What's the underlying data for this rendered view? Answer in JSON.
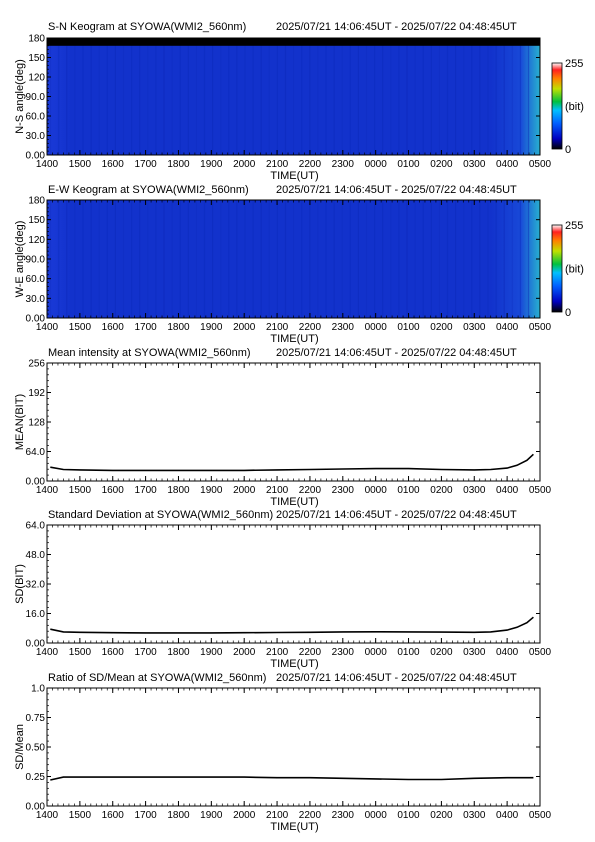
{
  "header_range": "2025/07/21 14:06:45UT - 2025/07/22 04:48:45UT",
  "time_ticks": [
    "1400",
    "1500",
    "1600",
    "1700",
    "1800",
    "1900",
    "2000",
    "2100",
    "2200",
    "2300",
    "0000",
    "0100",
    "0200",
    "0300",
    "0400",
    "0500"
  ],
  "xlabel": "TIME(UT)",
  "colorbar": {
    "max_label": "255",
    "min_label": "0",
    "unit_label": "(bit)"
  },
  "colors": {
    "keogram_base": "#1030d0",
    "keogram_edge": "#20a0d0",
    "night_band": "#000000",
    "line": "#000000"
  },
  "chart_data": [
    {
      "type": "heatmap",
      "title": "S-N Keogram at SYOWA(WMI2_560nm)",
      "ylabel": "N-S angle(deg)",
      "ylim": [
        0,
        180
      ],
      "yticks": [
        "180",
        "150",
        "120",
        "90.0",
        "60.0",
        "30.0",
        "0.00"
      ],
      "description_values": {
        "typical_intensity_bit": 40,
        "end_intensity_bit": 80,
        "top_band_angle_deg": [
          168,
          180
        ]
      }
    },
    {
      "type": "heatmap",
      "title": "E-W Keogram at SYOWA(WMI2_560nm)",
      "ylabel": "W-E angle(deg)",
      "ylim": [
        0,
        180
      ],
      "yticks": [
        "180",
        "150",
        "120",
        "90.0",
        "60.0",
        "30.0",
        "0.00"
      ],
      "description_values": {
        "typical_intensity_bit": 45,
        "end_intensity_bit": 80
      }
    },
    {
      "type": "line",
      "title": "Mean intensity at SYOWA(WMI2_560nm)",
      "ylabel": "MEAN(BIT)",
      "ylim": [
        0,
        256
      ],
      "yticks": [
        "256",
        "192",
        "128",
        "64.0",
        "0.00"
      ],
      "x_hours": [
        14.1,
        14.5,
        15,
        16,
        17,
        18,
        19,
        20,
        21,
        22,
        23,
        24,
        25,
        26,
        27,
        27.5,
        28,
        28.3,
        28.6,
        28.8
      ],
      "values": [
        30,
        25,
        24,
        23,
        23,
        23,
        23,
        23,
        24,
        25,
        26,
        27,
        27,
        25,
        24,
        25,
        28,
        34,
        45,
        58
      ]
    },
    {
      "type": "line",
      "title": "Standard Deviation at SYOWA(WMI2_560nm)",
      "ylabel": "SD(BIT)",
      "ylim": [
        0,
        64
      ],
      "yticks": [
        "64.0",
        "48.0",
        "32.0",
        "16.0",
        "0.00"
      ],
      "x_hours": [
        14.1,
        14.5,
        15,
        16,
        17,
        18,
        19,
        20,
        21,
        22,
        23,
        24,
        25,
        26,
        27,
        27.5,
        28,
        28.3,
        28.6,
        28.8
      ],
      "values": [
        7.5,
        6.0,
        5.8,
        5.6,
        5.5,
        5.5,
        5.5,
        5.6,
        5.7,
        5.8,
        6.0,
        6.1,
        6.0,
        5.9,
        5.8,
        6.0,
        7.0,
        8.5,
        11.0,
        14.0
      ]
    },
    {
      "type": "line",
      "title": "Ratio of SD/Mean at SYOWA(WMI2_560nm)",
      "ylabel": "SD/Mean",
      "ylim": [
        0,
        1
      ],
      "yticks": [
        "1.0",
        "0.75",
        "0.50",
        "0.25",
        "0.00"
      ],
      "x_hours": [
        14.1,
        14.5,
        15,
        16,
        17,
        18,
        19,
        20,
        21,
        22,
        23,
        24,
        25,
        26,
        27,
        28,
        28.8
      ],
      "values": [
        0.22,
        0.245,
        0.245,
        0.245,
        0.245,
        0.245,
        0.245,
        0.245,
        0.24,
        0.24,
        0.235,
        0.23,
        0.225,
        0.225,
        0.235,
        0.24,
        0.24
      ]
    }
  ]
}
